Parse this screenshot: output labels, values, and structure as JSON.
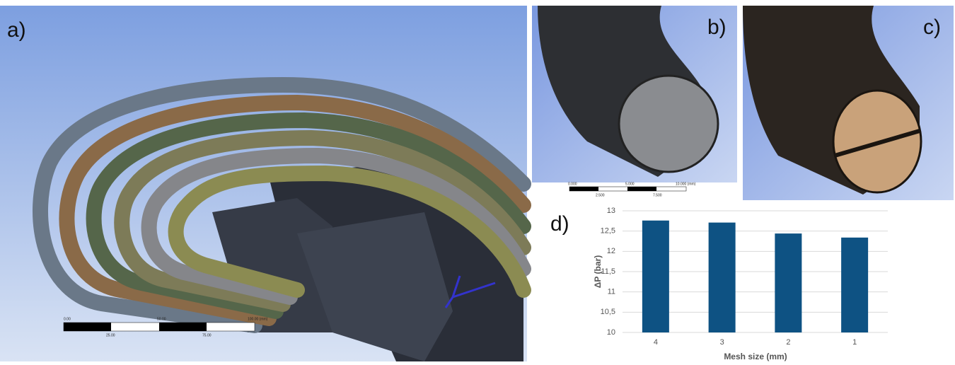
{
  "panels": {
    "a": "a)",
    "b": "b)",
    "c": "c)",
    "d": "d)"
  },
  "scale_bar_a": {
    "top": [
      "0.00",
      "50.00",
      "100.00 (mm)"
    ],
    "bottom": [
      "25.00",
      "75.00"
    ]
  },
  "scale_bar_b": {
    "top": [
      "0.000",
      "5.000",
      "10.000 (mm)"
    ],
    "bottom": [
      "2.500",
      "7.500"
    ]
  },
  "chart_data": {
    "type": "bar",
    "x_label": "Mesh size (mm)",
    "y_label": "ΔP (bar)",
    "categories": [
      "4",
      "3",
      "2",
      "1"
    ],
    "values": [
      12.76,
      12.71,
      12.44,
      12.34
    ],
    "color": "#0e5283",
    "ylim": [
      10,
      13
    ],
    "yticks": [
      10,
      {
        "value": 10.5,
        "label": "10,5"
      },
      11,
      {
        "value": 11.5,
        "label": "11,5"
      },
      12,
      {
        "value": 12.5,
        "label": "12,5"
      },
      13
    ],
    "grid": true
  }
}
